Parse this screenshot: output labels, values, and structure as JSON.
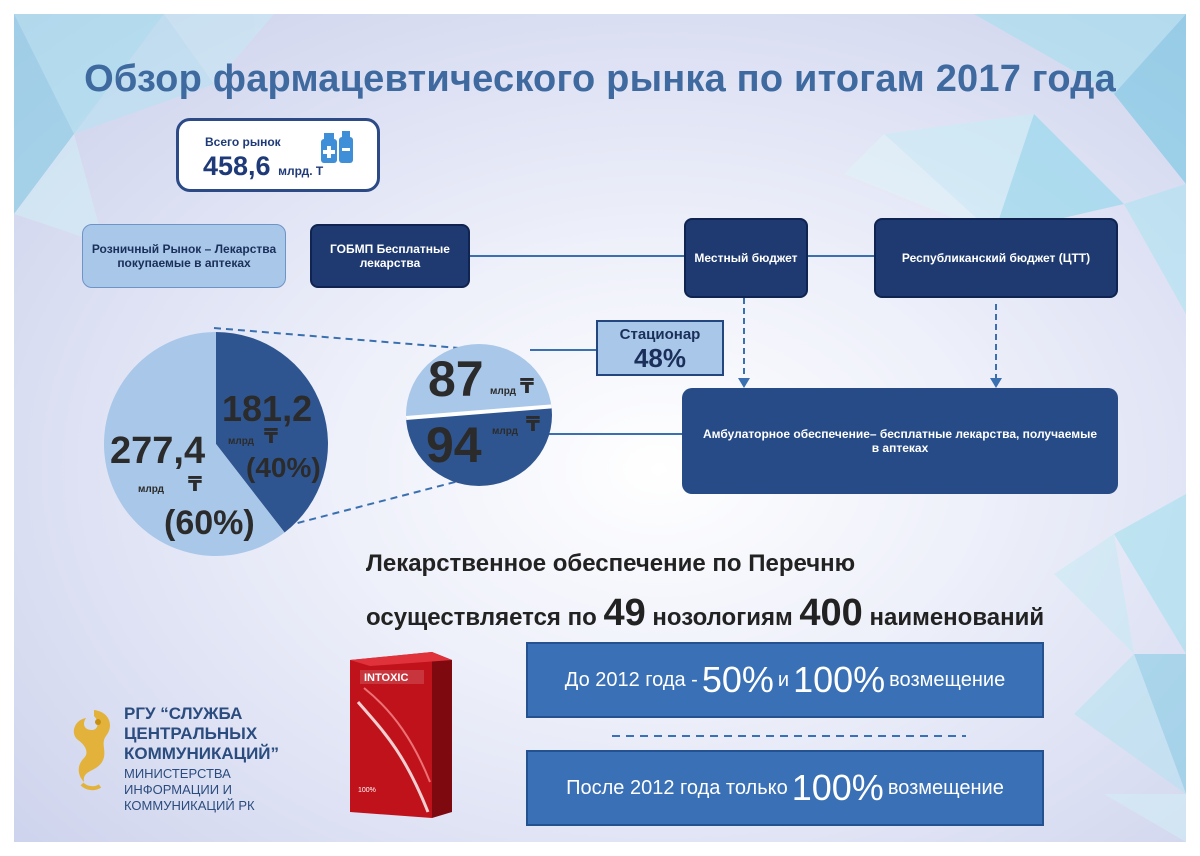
{
  "title": "Обзор фармацевтического рынка по итогам 2017 года",
  "total_market": {
    "label": "Всего рынок",
    "value": "458,6",
    "unit": "млрд. Т",
    "icon": "medicine-bottles-icon"
  },
  "boxes": {
    "retail": "Розничный Рынок – Лекарства покупаемые в аптеках",
    "gobmp": "ГОБМП Бесплатные лекарства",
    "local_budget": "Местный бюджет",
    "republic_budget": "Республиканский бюджет (ЦТТ)",
    "inpatient_label": "Стационар",
    "inpatient_value": "48%",
    "outpatient": "Амбулаторное обеспечение– бесплатные лекарства, получаемые в аптеках"
  },
  "left_pie": {
    "retail_value": "277,4",
    "retail_unit": "млрд",
    "retail_currency": "₸",
    "retail_share": "(60%)",
    "gobmp_value": "181,2",
    "gobmp_unit": "млрд",
    "gobmp_currency": "₸",
    "gobmp_share": "(40%)"
  },
  "right_circle": {
    "top_value": "87",
    "top_unit": "млрд",
    "top_currency": "₸",
    "bottom_value": "94",
    "bottom_unit": "млрд",
    "bottom_currency": "₸"
  },
  "chart_data": [
    {
      "type": "pie",
      "categories": [
        "Розничный рынок",
        "ГОБМП"
      ],
      "values": [
        277.4,
        181.2
      ],
      "shares": [
        60,
        40
      ]
    },
    {
      "type": "pie",
      "categories": [
        "Стационар",
        "Амбулаторное обеспечение"
      ],
      "values": [
        87,
        94
      ]
    }
  ],
  "statement": {
    "line1": "Лекарственное обеспечение по Перечню",
    "line2_a": "осуществляется по",
    "num1": "49",
    "line2_b": "нозологиям",
    "num2": "400",
    "line2_c": "наименований"
  },
  "info1": {
    "pre": "До 2012 года -",
    "p1": "50%",
    "mid": "и",
    "p2": "100%",
    "post": "возмещение"
  },
  "info2": {
    "pre": "После 2012 года только",
    "p1": "100%",
    "post": "возмещение"
  },
  "product": {
    "brand": "INTOXIC",
    "badge": "100%"
  },
  "footer": {
    "line1": "РГУ “СЛУЖБА",
    "line2": "ЦЕНТРАЛЬНЫХ",
    "line3": "КОММУНИКАЦИЙ”",
    "line4": "МИНИСТЕРСТВА",
    "line5": "ИНФОРМАЦИИ И",
    "line6": "КОММУНИКАЦИЙ РК",
    "logo_icon": "snow-leopard-logo-icon"
  },
  "colors": {
    "title": "#3f6aa0",
    "dark_navy": "#1e3a70",
    "light_blue": "#a9c7e8",
    "info_blue": "#3a70b5",
    "pie_dark": "#2f5590",
    "pie_light": "#a9c7e8",
    "gold": "#e2b23a"
  }
}
